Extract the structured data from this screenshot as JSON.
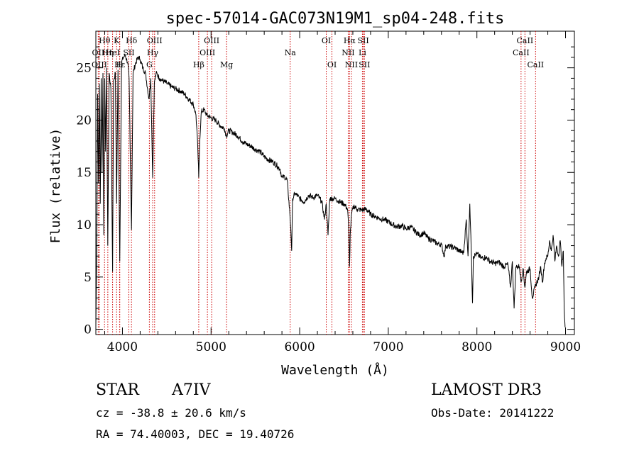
{
  "chart_data": {
    "type": "line",
    "title": "spec-57014-GAC073N19M1_sp04-248.fits",
    "xlabel": "Wavelength (Å)",
    "ylabel": "Flux (relative)",
    "xlim": [
      3700,
      9100
    ],
    "ylim": [
      -0.5,
      28.5
    ],
    "xticks": [
      4000,
      5000,
      6000,
      7000,
      8000,
      9000
    ],
    "yticks": [
      0,
      5,
      10,
      15,
      20,
      25
    ],
    "grid": false,
    "series": [
      {
        "name": "spectrum",
        "color": "#000000",
        "points": [
          [
            3700,
            0.3
          ],
          [
            3710,
            7.0
          ],
          [
            3720,
            22.5
          ],
          [
            3730,
            14.0
          ],
          [
            3740,
            23.5
          ],
          [
            3750,
            12.0
          ],
          [
            3760,
            24.0
          ],
          [
            3770,
            15.0
          ],
          [
            3780,
            24.5
          ],
          [
            3790,
            9.0
          ],
          [
            3800,
            24.0
          ],
          [
            3810,
            17.0
          ],
          [
            3820,
            25.0
          ],
          [
            3835,
            8.0
          ],
          [
            3850,
            24.5
          ],
          [
            3870,
            23.0
          ],
          [
            3889,
            5.5
          ],
          [
            3900,
            23.8
          ],
          [
            3920,
            24.5
          ],
          [
            3934,
            12.0
          ],
          [
            3950,
            24.8
          ],
          [
            3970,
            6.5
          ],
          [
            3990,
            25.5
          ],
          [
            4010,
            26.0
          ],
          [
            4030,
            26.2
          ],
          [
            4060,
            25.5
          ],
          [
            4075,
            24.0
          ],
          [
            4102,
            9.5
          ],
          [
            4120,
            24.5
          ],
          [
            4150,
            25.5
          ],
          [
            4180,
            26.0
          ],
          [
            4200,
            25.8
          ],
          [
            4230,
            25.0
          ],
          [
            4260,
            24.5
          ],
          [
            4300,
            22.0
          ],
          [
            4320,
            24.0
          ],
          [
            4341,
            14.5
          ],
          [
            4360,
            23.5
          ],
          [
            4380,
            24.5
          ],
          [
            4420,
            24.0
          ],
          [
            4450,
            23.8
          ],
          [
            4500,
            23.5
          ],
          [
            4550,
            23.2
          ],
          [
            4600,
            23.0
          ],
          [
            4650,
            22.8
          ],
          [
            4700,
            22.5
          ],
          [
            4750,
            22.0
          ],
          [
            4800,
            21.5
          ],
          [
            4830,
            20.5
          ],
          [
            4850,
            17.5
          ],
          [
            4861,
            14.5
          ],
          [
            4872,
            18.0
          ],
          [
            4890,
            20.8
          ],
          [
            4920,
            21.0
          ],
          [
            4950,
            20.5
          ],
          [
            5000,
            20.2
          ],
          [
            5050,
            20.0
          ],
          [
            5100,
            19.5
          ],
          [
            5150,
            19.2
          ],
          [
            5173,
            18.5
          ],
          [
            5200,
            19.0
          ],
          [
            5250,
            18.8
          ],
          [
            5300,
            18.5
          ],
          [
            5350,
            18.0
          ],
          [
            5400,
            17.7
          ],
          [
            5450,
            17.5
          ],
          [
            5500,
            17.2
          ],
          [
            5550,
            17.0
          ],
          [
            5600,
            16.5
          ],
          [
            5650,
            16.2
          ],
          [
            5700,
            16.0
          ],
          [
            5750,
            15.6
          ],
          [
            5780,
            15.3
          ],
          [
            5800,
            14.5
          ],
          [
            5830,
            14.6
          ],
          [
            5860,
            14.2
          ],
          [
            5890,
            11.0
          ],
          [
            5900,
            9.5
          ],
          [
            5910,
            7.5
          ],
          [
            5920,
            12.5
          ],
          [
            5950,
            13.0
          ],
          [
            6000,
            12.5
          ],
          [
            6050,
            12.2
          ],
          [
            6100,
            12.8
          ],
          [
            6150,
            12.6
          ],
          [
            6200,
            12.8
          ],
          [
            6250,
            12.2
          ],
          [
            6280,
            10.5
          ],
          [
            6300,
            12.0
          ],
          [
            6320,
            9.0
          ],
          [
            6340,
            12.5
          ],
          [
            6400,
            12.5
          ],
          [
            6450,
            12.2
          ],
          [
            6500,
            12.0
          ],
          [
            6540,
            11.5
          ],
          [
            6555,
            9.5
          ],
          [
            6563,
            6.0
          ],
          [
            6570,
            9.0
          ],
          [
            6585,
            11.0
          ],
          [
            6610,
            11.8
          ],
          [
            6650,
            11.5
          ],
          [
            6700,
            11.4
          ],
          [
            6750,
            11.5
          ],
          [
            6800,
            11.0
          ],
          [
            6850,
            10.8
          ],
          [
            6900,
            10.6
          ],
          [
            6950,
            10.5
          ],
          [
            7000,
            10.3
          ],
          [
            7050,
            10.0
          ],
          [
            7100,
            9.8
          ],
          [
            7150,
            9.9
          ],
          [
            7200,
            9.6
          ],
          [
            7250,
            9.8
          ],
          [
            7300,
            9.4
          ],
          [
            7350,
            9.0
          ],
          [
            7400,
            9.2
          ],
          [
            7450,
            8.7
          ],
          [
            7500,
            8.5
          ],
          [
            7550,
            8.2
          ],
          [
            7600,
            8.1
          ],
          [
            7630,
            7.0
          ],
          [
            7650,
            8.0
          ],
          [
            7700,
            7.9
          ],
          [
            7750,
            7.8
          ],
          [
            7800,
            7.5
          ],
          [
            7850,
            7.3
          ],
          [
            7880,
            10.5
          ],
          [
            7900,
            7.0
          ],
          [
            7920,
            12.0
          ],
          [
            7940,
            6.5
          ],
          [
            7950,
            2.5
          ],
          [
            7960,
            7.0
          ],
          [
            8000,
            7.2
          ],
          [
            8050,
            6.8
          ],
          [
            8100,
            6.9
          ],
          [
            8150,
            6.5
          ],
          [
            8200,
            6.3
          ],
          [
            8250,
            6.4
          ],
          [
            8300,
            6.0
          ],
          [
            8350,
            6.2
          ],
          [
            8380,
            4.0
          ],
          [
            8400,
            6.5
          ],
          [
            8420,
            2.0
          ],
          [
            8440,
            6.0
          ],
          [
            8480,
            6.0
          ],
          [
            8498,
            4.5
          ],
          [
            8520,
            5.8
          ],
          [
            8542,
            4.0
          ],
          [
            8560,
            5.5
          ],
          [
            8600,
            5.8
          ],
          [
            8625,
            3.0
          ],
          [
            8662,
            4.2
          ],
          [
            8700,
            5.0
          ],
          [
            8720,
            6.0
          ],
          [
            8740,
            4.5
          ],
          [
            8760,
            6.2
          ],
          [
            8780,
            6.8
          ],
          [
            8800,
            7.0
          ],
          [
            8820,
            8.5
          ],
          [
            8840,
            7.5
          ],
          [
            8860,
            9.0
          ],
          [
            8880,
            6.5
          ],
          [
            8900,
            8.0
          ],
          [
            8920,
            7.0
          ],
          [
            8940,
            8.5
          ],
          [
            8960,
            6.0
          ],
          [
            8975,
            7.5
          ],
          [
            8985,
            2.0
          ],
          [
            8995,
            0.2
          ]
        ]
      }
    ],
    "lines": [
      {
        "label": "Hθ",
        "x": 3798,
        "row": 0
      },
      {
        "label": "OII",
        "x": 3727,
        "row": 1
      },
      {
        "label": "OIII",
        "x": 3740,
        "row": 2
      },
      {
        "label": "Hη",
        "x": 3835,
        "row": 1
      },
      {
        "label": "K",
        "x": 3934,
        "row": 0
      },
      {
        "label": "HeI",
        "x": 3889,
        "row": 1
      },
      {
        "label": "Hε",
        "x": 3970,
        "row": 2
      },
      {
        "label": "H",
        "x": 3968,
        "row": 2
      },
      {
        "label": "Hδ",
        "x": 4102,
        "row": 0
      },
      {
        "label": "SII",
        "x": 4072,
        "row": 1
      },
      {
        "label": "Hγ",
        "x": 4341,
        "row": 1
      },
      {
        "label": "OIII",
        "x": 4363,
        "row": 0
      },
      {
        "label": "G",
        "x": 4304,
        "row": 2
      },
      {
        "label": "Hβ",
        "x": 4861,
        "row": 2
      },
      {
        "label": "OIII",
        "x": 5007,
        "row": 0
      },
      {
        "label": "OIII",
        "x": 4959,
        "row": 1
      },
      {
        "label": "Mg",
        "x": 5175,
        "row": 2
      },
      {
        "label": "Na",
        "x": 5893,
        "row": 1
      },
      {
        "label": "OI",
        "x": 6300,
        "row": 0
      },
      {
        "label": "OI",
        "x": 6364,
        "row": 2
      },
      {
        "label": "Hα",
        "x": 6563,
        "row": 0
      },
      {
        "label": "NII",
        "x": 6548,
        "row": 1
      },
      {
        "label": "NII",
        "x": 6584,
        "row": 2
      },
      {
        "label": "SII",
        "x": 6717,
        "row": 0
      },
      {
        "label": "Li",
        "x": 6708,
        "row": 1
      },
      {
        "label": "SII",
        "x": 6731,
        "row": 2
      },
      {
        "label": "CaII",
        "x": 8542,
        "row": 0
      },
      {
        "label": "CaII",
        "x": 8498,
        "row": 1
      },
      {
        "label": "CaII",
        "x": 8662,
        "row": 2
      }
    ],
    "line_color": "#cc0000"
  },
  "info": {
    "class": "STAR",
    "subclass": "A7IV",
    "cz": "cz = -38.8 ± 20.6 km/s",
    "radec": "RA =  74.40003, DEC =  19.40726",
    "survey": "LAMOST DR3",
    "obsdate": "Obs-Date: 20141222"
  }
}
